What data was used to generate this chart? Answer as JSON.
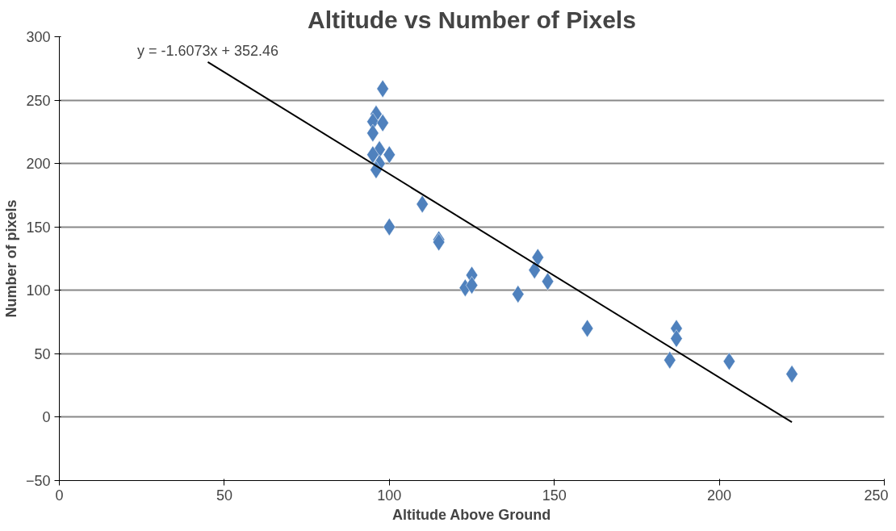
{
  "chart_data": {
    "type": "scatter",
    "title": "Altitude vs Number of Pixels",
    "xlabel": "Altitude Above Ground",
    "ylabel": "Number of pixels",
    "annotations": [
      {
        "text": "y = -1.6073x + 352.46",
        "x": 45,
        "y": 280
      }
    ],
    "xlim": [
      0,
      250
    ],
    "xticks": [
      0,
      50,
      100,
      150,
      200,
      250
    ],
    "ylim": [
      -50,
      300
    ],
    "yticks": [
      -50,
      0,
      50,
      100,
      150,
      200,
      250,
      300
    ],
    "grid": "y",
    "marker": "diamond",
    "series": [
      {
        "color": "#4f81bd",
        "x": [
          98,
          96,
          95,
          98,
          95,
          97,
          95,
          100,
          97,
          96,
          110,
          100,
          115,
          115,
          125,
          123,
          125,
          139,
          145,
          144,
          148,
          160,
          187,
          187,
          185,
          203,
          222
        ],
        "values": [
          259,
          239,
          233,
          232,
          224,
          211,
          207,
          207,
          200,
          195,
          168,
          150,
          140,
          138,
          112,
          102,
          104,
          97,
          126,
          116,
          107,
          70,
          70,
          62,
          45,
          44,
          34
        ]
      },
      {
        "type": "line",
        "marker": "none",
        "color": "#000000",
        "x": [
          45,
          222
        ],
        "values": [
          280,
          -4
        ]
      }
    ]
  }
}
